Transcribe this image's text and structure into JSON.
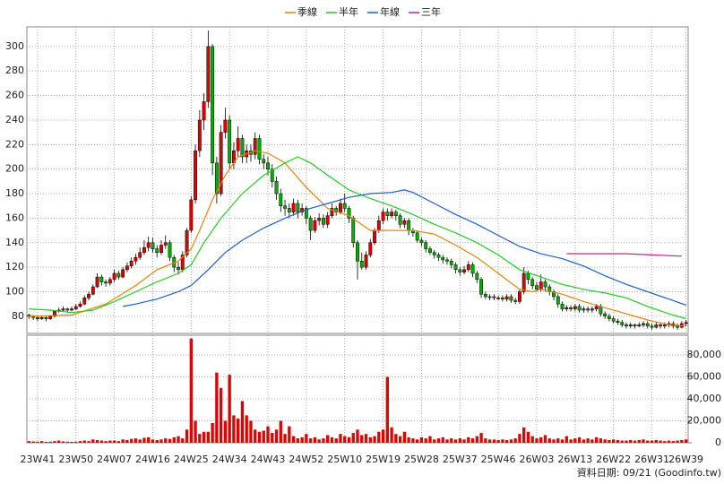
{
  "chart_data": {
    "type": "candlestick",
    "footer": "資料日期: 09/21 (Goodinfo.tw)",
    "up_color": "#e00000",
    "down_color": "#00b000",
    "grid": true,
    "ylim": [
      66,
      316
    ],
    "yticks": [
      80,
      100,
      120,
      140,
      160,
      180,
      200,
      220,
      240,
      260,
      280,
      300
    ],
    "categories": [
      null,
      null,
      "23W41",
      null,
      null,
      null,
      null,
      null,
      null,
      null,
      null,
      "23W50",
      null,
      null,
      null,
      null,
      null,
      null,
      null,
      null,
      "24W07",
      null,
      null,
      null,
      null,
      null,
      null,
      null,
      null,
      "24W16",
      null,
      null,
      null,
      null,
      null,
      null,
      null,
      null,
      "24W25",
      null,
      null,
      null,
      null,
      null,
      null,
      null,
      null,
      "24W34",
      null,
      null,
      null,
      null,
      null,
      null,
      null,
      null,
      "24W43",
      null,
      null,
      null,
      null,
      null,
      null,
      null,
      null,
      "24W52",
      null,
      null,
      null,
      null,
      null,
      null,
      null,
      null,
      "25W10",
      null,
      null,
      null,
      null,
      null,
      null,
      null,
      null,
      "25W19",
      null,
      null,
      null,
      null,
      null,
      null,
      null,
      null,
      "25W28",
      null,
      null,
      null,
      null,
      null,
      null,
      null,
      null,
      "25W37",
      null,
      null,
      null,
      null,
      null,
      null,
      null,
      null,
      "25W46",
      null,
      null,
      null,
      null,
      null,
      null,
      null,
      null,
      "26W03",
      null,
      null,
      null,
      null,
      null,
      null,
      null,
      null,
      "26W13",
      null,
      null,
      null,
      null,
      null,
      null,
      null,
      null,
      "26W22",
      null,
      null,
      null,
      null,
      null,
      null,
      null,
      null,
      "26W31",
      null,
      null,
      null,
      null,
      null,
      null,
      null,
      "26W39"
    ],
    "open": [
      81,
      80,
      79,
      78,
      79,
      78,
      80,
      84,
      85,
      86,
      85,
      86,
      88,
      90,
      95,
      98,
      104,
      112,
      108,
      107,
      110,
      115,
      112,
      118,
      121,
      125,
      128,
      132,
      136,
      140,
      135,
      132,
      138,
      140,
      128,
      120,
      118,
      130,
      150,
      175,
      215,
      240,
      255,
      300,
      205,
      180,
      230,
      240,
      205,
      215,
      225,
      210,
      215,
      212,
      225,
      208,
      205,
      200,
      190,
      180,
      170,
      168,
      165,
      172,
      165,
      168,
      160,
      150,
      158,
      160,
      155,
      162,
      168,
      165,
      172,
      168,
      160,
      140,
      125,
      120,
      130,
      140,
      150,
      158,
      165,
      162,
      165,
      162,
      155,
      158,
      150,
      148,
      142,
      140,
      135,
      132,
      130,
      128,
      126,
      125,
      122,
      118,
      116,
      118,
      122,
      115,
      110,
      98,
      96,
      96,
      95,
      95,
      94,
      96,
      93,
      92,
      100,
      115,
      110,
      105,
      102,
      108,
      104,
      100,
      96,
      90,
      86,
      87,
      86,
      88,
      85,
      86,
      85,
      86,
      88,
      82,
      80,
      78,
      76,
      75,
      73,
      72,
      73,
      72,
      73,
      74,
      72,
      71,
      73,
      72,
      73,
      74,
      72,
      71,
      74
    ],
    "high": [
      82,
      81,
      80,
      80,
      80,
      81,
      85,
      87,
      88,
      87,
      88,
      90,
      92,
      97,
      100,
      106,
      115,
      114,
      110,
      112,
      118,
      117,
      120,
      124,
      128,
      131,
      136,
      142,
      145,
      144,
      138,
      142,
      146,
      142,
      130,
      124,
      133,
      152,
      178,
      220,
      248,
      262,
      313,
      302,
      210,
      236,
      250,
      244,
      222,
      235,
      228,
      220,
      220,
      230,
      228,
      212,
      210,
      204,
      194,
      184,
      175,
      172,
      176,
      175,
      172,
      170,
      162,
      161,
      164,
      163,
      165,
      172,
      170,
      176,
      180,
      170,
      162,
      142,
      132,
      133,
      143,
      152,
      162,
      168,
      168,
      168,
      167,
      164,
      160,
      160,
      152,
      150,
      144,
      142,
      137,
      134,
      132,
      130,
      128,
      127,
      124,
      120,
      121,
      125,
      124,
      117,
      112,
      100,
      98,
      98,
      97,
      97,
      98,
      98,
      95,
      102,
      120,
      117,
      112,
      108,
      114,
      110,
      106,
      102,
      98,
      92,
      89,
      89,
      90,
      90,
      88,
      88,
      88,
      90,
      90,
      84,
      82,
      80,
      78,
      77,
      75,
      75,
      74,
      75,
      76,
      76,
      74,
      75,
      75,
      75,
      76,
      76,
      74,
      76,
      77
    ],
    "low": [
      78,
      77,
      76,
      77,
      76,
      77,
      79,
      83,
      84,
      83,
      84,
      85,
      87,
      89,
      93,
      97,
      103,
      105,
      104,
      105,
      108,
      110,
      111,
      116,
      119,
      122,
      126,
      130,
      133,
      132,
      128,
      130,
      135,
      125,
      116,
      114,
      116,
      128,
      148,
      172,
      210,
      232,
      250,
      195,
      172,
      178,
      225,
      200,
      200,
      210,
      205,
      205,
      206,
      208,
      204,
      200,
      195,
      185,
      175,
      165,
      162,
      160,
      162,
      160,
      162,
      155,
      142,
      148,
      154,
      152,
      152,
      160,
      162,
      163,
      165,
      156,
      136,
      110,
      118,
      118,
      128,
      138,
      148,
      155,
      158,
      160,
      158,
      152,
      152,
      146,
      145,
      140,
      137,
      132,
      130,
      127,
      125,
      123,
      122,
      119,
      115,
      113,
      114,
      116,
      112,
      107,
      95,
      94,
      93,
      93,
      93,
      92,
      92,
      91,
      90,
      90,
      98,
      106,
      102,
      100,
      100,
      100,
      97,
      93,
      87,
      84,
      84,
      84,
      84,
      83,
      83,
      83,
      83,
      84,
      80,
      78,
      76,
      74,
      73,
      71,
      70,
      70,
      70,
      71,
      71,
      70,
      69,
      70,
      70,
      70,
      71,
      70,
      69,
      70,
      72
    ],
    "close": [
      80,
      79,
      78,
      79,
      78,
      80,
      84,
      85,
      86,
      85,
      86,
      88,
      90,
      95,
      98,
      104,
      112,
      108,
      107,
      110,
      115,
      112,
      118,
      121,
      125,
      128,
      132,
      136,
      140,
      135,
      132,
      138,
      140,
      128,
      120,
      118,
      130,
      150,
      175,
      215,
      240,
      255,
      300,
      205,
      180,
      230,
      240,
      205,
      215,
      225,
      210,
      215,
      212,
      225,
      208,
      205,
      200,
      190,
      180,
      170,
      168,
      165,
      172,
      165,
      168,
      160,
      150,
      158,
      160,
      155,
      162,
      168,
      165,
      172,
      168,
      160,
      140,
      125,
      120,
      130,
      140,
      150,
      158,
      165,
      162,
      165,
      162,
      155,
      158,
      150,
      148,
      142,
      140,
      135,
      132,
      130,
      128,
      126,
      125,
      122,
      118,
      116,
      118,
      122,
      115,
      110,
      98,
      96,
      96,
      95,
      95,
      94,
      96,
      93,
      92,
      100,
      115,
      110,
      105,
      102,
      108,
      104,
      100,
      96,
      90,
      86,
      87,
      86,
      88,
      85,
      86,
      85,
      86,
      88,
      82,
      80,
      78,
      76,
      75,
      73,
      72,
      73,
      72,
      73,
      74,
      72,
      71,
      73,
      72,
      73,
      74,
      72,
      71,
      74,
      75
    ],
    "series": [
      {
        "name": "季線",
        "color": "#e8820c",
        "x": [
          0,
          10,
          18,
          25,
          30,
          35,
          38,
          40,
          43,
          46,
          49,
          53,
          56,
          60,
          65,
          70,
          75,
          80,
          85,
          90,
          95,
          100,
          105,
          110,
          115,
          118,
          120,
          125,
          130,
          135,
          140,
          145,
          150,
          154
        ],
        "values": [
          80,
          81,
          90,
          105,
          118,
          125,
          135,
          150,
          175,
          195,
          210,
          215,
          213,
          205,
          185,
          168,
          162,
          150,
          150,
          150,
          147,
          138,
          128,
          115,
          102,
          100,
          102,
          98,
          92,
          87,
          82,
          77,
          73,
          72
        ]
      },
      {
        "name": "半年",
        "color": "#22cc22",
        "x": [
          0,
          5,
          10,
          15,
          20,
          25,
          30,
          35,
          38,
          41,
          45,
          50,
          55,
          60,
          63,
          66,
          70,
          75,
          80,
          85,
          90,
          95,
          100,
          105,
          110,
          115,
          120,
          125,
          130,
          135,
          140,
          145,
          150,
          154
        ],
        "values": [
          86,
          85,
          83,
          85,
          92,
          100,
          108,
          115,
          122,
          140,
          160,
          180,
          195,
          205,
          210,
          205,
          195,
          183,
          176,
          170,
          163,
          155,
          148,
          140,
          130,
          118,
          112,
          106,
          102,
          99,
          95,
          88,
          82,
          78
        ]
      },
      {
        "name": "年線",
        "color": "#1f5fd0",
        "x": [
          22,
          25,
          30,
          35,
          38,
          42,
          46,
          50,
          55,
          60,
          65,
          70,
          75,
          80,
          85,
          88,
          90,
          95,
          100,
          105,
          110,
          115,
          120,
          125,
          130,
          135,
          140,
          145,
          150,
          154
        ],
        "values": [
          88,
          90,
          94,
          100,
          105,
          118,
          132,
          142,
          152,
          160,
          167,
          172,
          177,
          180,
          181,
          183,
          181,
          172,
          163,
          155,
          146,
          137,
          131,
          127,
          121,
          113,
          106,
          100,
          94,
          89
        ]
      },
      {
        "name": "三年",
        "color": "#d0208a",
        "x": [
          126,
          140,
          146,
          153
        ],
        "values": [
          131,
          131,
          130,
          129
        ]
      }
    ],
    "volume": {
      "color": "#e00000",
      "ylim": [
        0,
        98000
      ],
      "yticks": [
        0,
        {
          "value": 20000,
          "label": "20,000"
        },
        {
          "value": 40000,
          "label": "40,000"
        },
        {
          "value": 60000,
          "label": "60,000"
        },
        {
          "value": 80000,
          "label": "80,000"
        }
      ],
      "values": [
        1500,
        1200,
        1000,
        1500,
        800,
        1000,
        1500,
        2000,
        1200,
        1000,
        800,
        1000,
        1500,
        2000,
        1500,
        3000,
        2500,
        2000,
        1500,
        2000,
        2000,
        1500,
        3000,
        2500,
        3500,
        4000,
        3000,
        4500,
        5000,
        3000,
        2500,
        3000,
        4000,
        3500,
        5000,
        6000,
        4000,
        12000,
        95000,
        20000,
        8000,
        10000,
        10000,
        18000,
        64000,
        50000,
        20000,
        62000,
        25000,
        22000,
        38000,
        25000,
        20000,
        12000,
        10000,
        11000,
        15000,
        9000,
        12000,
        20000,
        8000,
        15000,
        6000,
        4000,
        5000,
        8000,
        4000,
        5000,
        3000,
        4000,
        7000,
        5000,
        4000,
        8000,
        6000,
        5000,
        9000,
        12000,
        7000,
        8000,
        5000,
        6000,
        10000,
        12000,
        60000,
        14000,
        8000,
        6000,
        10000,
        5000,
        4000,
        3000,
        5000,
        4000,
        6000,
        3000,
        4000,
        5000,
        3000,
        4000,
        3000,
        4000,
        3000,
        5000,
        4000,
        6000,
        9000,
        4000,
        3000,
        3000,
        2500,
        3000,
        2500,
        3000,
        4000,
        8000,
        14000,
        10000,
        6000,
        4000,
        5000,
        7000,
        4000,
        3000,
        4000,
        3000,
        6000,
        3000,
        4000,
        5000,
        3000,
        4000,
        3000,
        5000,
        4000,
        3000,
        2500,
        3000,
        2500,
        2000,
        2000,
        2500,
        2000,
        2500,
        3000,
        2000,
        2000,
        2500,
        2000,
        1500,
        2000,
        1500,
        2000,
        2500,
        3000
      ]
    }
  }
}
